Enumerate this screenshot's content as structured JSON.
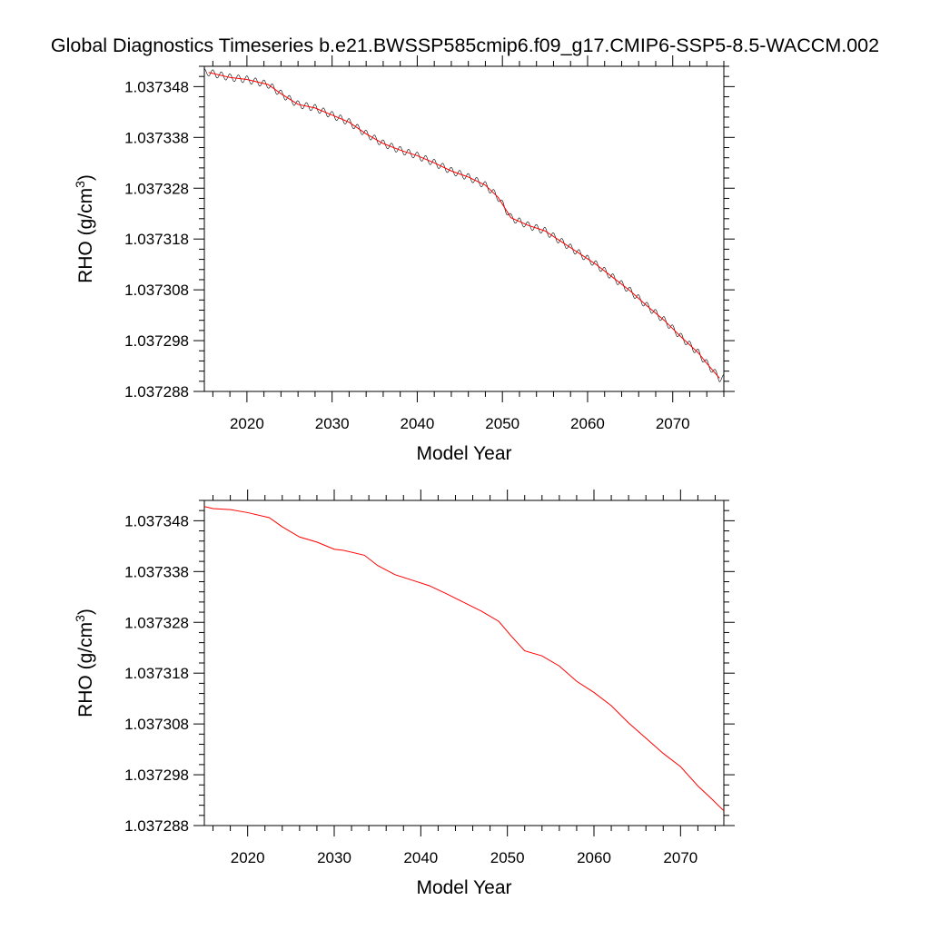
{
  "title": "Global Diagnostics Timeseries b.e21.BWSSP585cmip6.f09_g17.CMIP6-SSP5-8.5-WACCM.002",
  "colors": {
    "smoothed": "#ff0000",
    "raw": "#000000",
    "frame": "#000000"
  },
  "chart_data": [
    {
      "type": "line",
      "panel": "top",
      "xlabel": "Model Year",
      "ylabel": "RHO (g/cm3)",
      "ylabel_parts": {
        "base": "RHO (g/cm",
        "sup": "3",
        "close": ")"
      },
      "xlim": [
        2015,
        2076
      ],
      "ylim": [
        1.037288,
        1.037352
      ],
      "xticks": [
        2020,
        2030,
        2040,
        2050,
        2060,
        2070
      ],
      "xtick_labels": [
        "2020",
        "2030",
        "2040",
        "2050",
        "2060",
        "2070"
      ],
      "yticks": [
        1.037288,
        1.037298,
        1.037308,
        1.037318,
        1.037328,
        1.037338,
        1.037348
      ],
      "ytick_labels": [
        "1.037288",
        "1.037298",
        "1.037308",
        "1.037318",
        "1.037328",
        "1.037338",
        "1.037348"
      ],
      "grid": false,
      "seasonal_amplitude": 7e-07,
      "series": [
        {
          "role": "smoothed",
          "color": "#ff0000",
          "x": [
            2015.5,
            2018,
            2020,
            2022.5,
            2024,
            2026,
            2028,
            2030,
            2032,
            2034,
            2036,
            2038,
            2040,
            2042,
            2044,
            2046,
            2048,
            2049.5,
            2051,
            2053,
            2055,
            2057,
            2059,
            2061,
            2063,
            2065,
            2067,
            2069,
            2071,
            2073,
            2074,
            2075.5
          ],
          "y": [
            1.0373508,
            1.0373498,
            1.0373494,
            1.0373484,
            1.0373466,
            1.0373445,
            1.0373438,
            1.0373424,
            1.037341,
            1.0373387,
            1.0373368,
            1.0373355,
            1.0373344,
            1.037333,
            1.0373314,
            1.0373302,
            1.0373286,
            1.0373262,
            1.0373222,
            1.0373207,
            1.0373196,
            1.0373174,
            1.0373152,
            1.037313,
            1.0373104,
            1.0373078,
            1.0373048,
            1.037302,
            1.0372987,
            1.0372956,
            1.0372935,
            1.0372906
          ]
        }
      ]
    },
    {
      "type": "line",
      "panel": "bottom",
      "xlabel": "Model Year",
      "ylabel": "RHO (g/cm3)",
      "ylabel_parts": {
        "base": "RHO (g/cm",
        "sup": "3",
        "close": ")"
      },
      "xlim": [
        2015,
        2075
      ],
      "ylim": [
        1.037288,
        1.037352
      ],
      "xticks": [
        2020,
        2030,
        2040,
        2050,
        2060,
        2070
      ],
      "xtick_labels": [
        "2020",
        "2030",
        "2040",
        "2050",
        "2060",
        "2070"
      ],
      "yticks": [
        1.037288,
        1.037298,
        1.037308,
        1.037318,
        1.037328,
        1.037338,
        1.037348
      ],
      "ytick_labels": [
        "1.037288",
        "1.037298",
        "1.037308",
        "1.037318",
        "1.037328",
        "1.037338",
        "1.037348"
      ],
      "grid": false,
      "series": [
        {
          "role": "smoothed",
          "color": "#ff0000",
          "x": [
            2015,
            2016,
            2018,
            2020,
            2022.5,
            2024,
            2026,
            2028,
            2030,
            2031,
            2033.5,
            2035,
            2037,
            2039,
            2041,
            2043,
            2045,
            2047,
            2049,
            2050.5,
            2052,
            2054,
            2056,
            2058,
            2060,
            2062,
            2064,
            2066,
            2068,
            2070,
            2072,
            2073.5,
            2075
          ],
          "y": [
            1.0373508,
            1.0373504,
            1.0373502,
            1.0373496,
            1.0373486,
            1.0373468,
            1.0373448,
            1.0373438,
            1.0373424,
            1.0373422,
            1.0373412,
            1.0373392,
            1.0373374,
            1.0373363,
            1.0373352,
            1.0373336,
            1.0373319,
            1.0373302,
            1.0373282,
            1.0373252,
            1.0373224,
            1.0373214,
            1.0373194,
            1.0373164,
            1.0373142,
            1.0373116,
            1.0373082,
            1.0373052,
            1.0373022,
            1.0372996,
            1.0372958,
            1.0372934,
            1.0372909
          ]
        }
      ]
    }
  ]
}
